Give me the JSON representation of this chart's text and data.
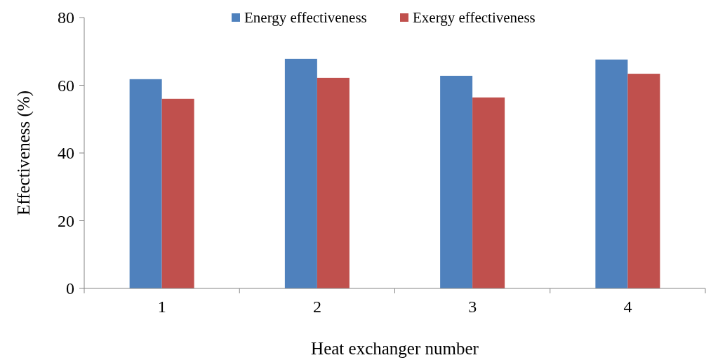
{
  "chart_data": {
    "type": "bar",
    "xlabel": "Heat exchanger number",
    "ylabel": "Effectiveness (%)",
    "categories": [
      "1",
      "2",
      "3",
      "4"
    ],
    "series": [
      {
        "name": "Energy effectiveness",
        "color": "#4f81bd",
        "values": [
          61.8,
          67.8,
          62.8,
          67.6
        ]
      },
      {
        "name": "Exergy effectiveness",
        "color": "#c0504d",
        "values": [
          56.0,
          62.2,
          56.4,
          63.4
        ]
      }
    ],
    "ylim": [
      0,
      80
    ],
    "yticks": [
      0,
      20,
      40,
      60,
      80
    ],
    "grid": false,
    "legend": "top"
  }
}
